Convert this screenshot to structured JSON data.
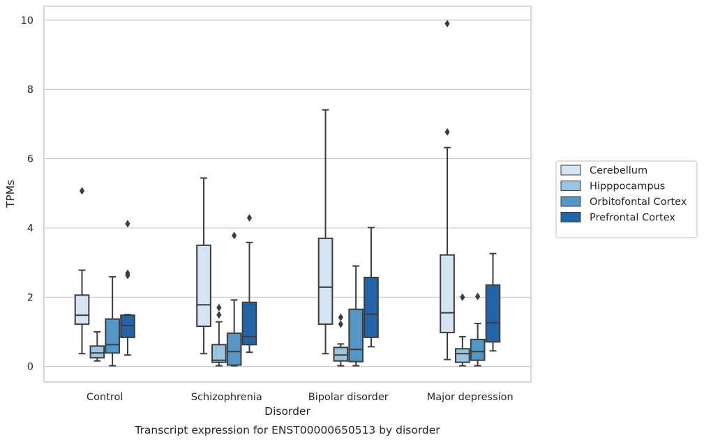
{
  "chart_data": {
    "type": "box",
    "title": "",
    "caption": "Transcript expression for ENST00000650513 by disorder",
    "xlabel": "Disorder",
    "ylabel": "TPMs",
    "ylim": [
      -0.45,
      10.4
    ],
    "yticks": [
      0,
      2,
      4,
      6,
      8,
      10
    ],
    "grid": true,
    "legend_position": "right",
    "categories": [
      "Control",
      "Schizophrenia",
      "Bipolar disorder",
      "Major depression"
    ],
    "series": [
      {
        "name": "Cerebellum",
        "color": "#d5e4f2",
        "boxes": [
          {
            "whisker_low": 0.37,
            "q1": 1.22,
            "median": 1.48,
            "q3": 2.06,
            "whisker_high": 2.78,
            "outliers": [
              5.07
            ]
          },
          {
            "whisker_low": 0.37,
            "q1": 1.16,
            "median": 1.78,
            "q3": 3.5,
            "whisker_high": 5.44,
            "outliers": []
          },
          {
            "whisker_low": 0.37,
            "q1": 1.22,
            "median": 2.29,
            "q3": 3.7,
            "whisker_high": 7.41,
            "outliers": []
          },
          {
            "whisker_low": 0.2,
            "q1": 0.98,
            "median": 1.55,
            "q3": 3.22,
            "whisker_high": 6.32,
            "outliers": [
              6.77,
              9.9
            ]
          }
        ]
      },
      {
        "name": "Hipppocampus",
        "color": "#9ac4df",
        "boxes": [
          {
            "whisker_low": 0.16,
            "q1": 0.25,
            "median": 0.39,
            "q3": 0.59,
            "whisker_high": 1.0,
            "outliers": []
          },
          {
            "whisker_low": 0.02,
            "q1": 0.12,
            "median": 0.18,
            "q3": 0.63,
            "whisker_high": 1.29,
            "outliers": [
              1.49,
              1.7
            ]
          },
          {
            "whisker_low": 0.02,
            "q1": 0.16,
            "median": 0.33,
            "q3": 0.55,
            "whisker_high": 0.65,
            "outliers": [
              1.22,
              1.42
            ]
          },
          {
            "whisker_low": 0.02,
            "q1": 0.12,
            "median": 0.37,
            "q3": 0.51,
            "whisker_high": 0.86,
            "outliers": [
              2.0
            ]
          }
        ]
      },
      {
        "name": "Orbitofontal Cortex",
        "color": "#5497c7",
        "boxes": [
          {
            "whisker_low": 0.02,
            "q1": 0.39,
            "median": 0.63,
            "q3": 1.37,
            "whisker_high": 2.59,
            "outliers": []
          },
          {
            "whisker_low": 0.02,
            "q1": 0.04,
            "median": 0.43,
            "q3": 0.96,
            "whisker_high": 1.92,
            "outliers": [
              3.78
            ]
          },
          {
            "whisker_low": 0.02,
            "q1": 0.14,
            "median": 0.49,
            "q3": 1.65,
            "whisker_high": 2.9,
            "outliers": []
          },
          {
            "whisker_low": 0.02,
            "q1": 0.18,
            "median": 0.43,
            "q3": 0.78,
            "whisker_high": 1.24,
            "outliers": [
              2.02
            ]
          }
        ]
      },
      {
        "name": "Prefrontal Cortex",
        "color": "#2463a8",
        "boxes": [
          {
            "whisker_low": 0.33,
            "q1": 0.84,
            "median": 1.18,
            "q3": 1.48,
            "whisker_high": 1.5,
            "outliers": [
              2.63,
              2.69,
              4.12
            ]
          },
          {
            "whisker_low": 0.41,
            "q1": 0.63,
            "median": 0.86,
            "q3": 1.85,
            "whisker_high": 3.58,
            "outliers": [
              4.29
            ]
          },
          {
            "whisker_low": 0.57,
            "q1": 0.84,
            "median": 1.51,
            "q3": 2.57,
            "whisker_high": 4.01,
            "outliers": []
          },
          {
            "whisker_low": 0.45,
            "q1": 0.71,
            "median": 1.26,
            "q3": 2.35,
            "whisker_high": 3.26,
            "outliers": []
          }
        ]
      }
    ]
  }
}
